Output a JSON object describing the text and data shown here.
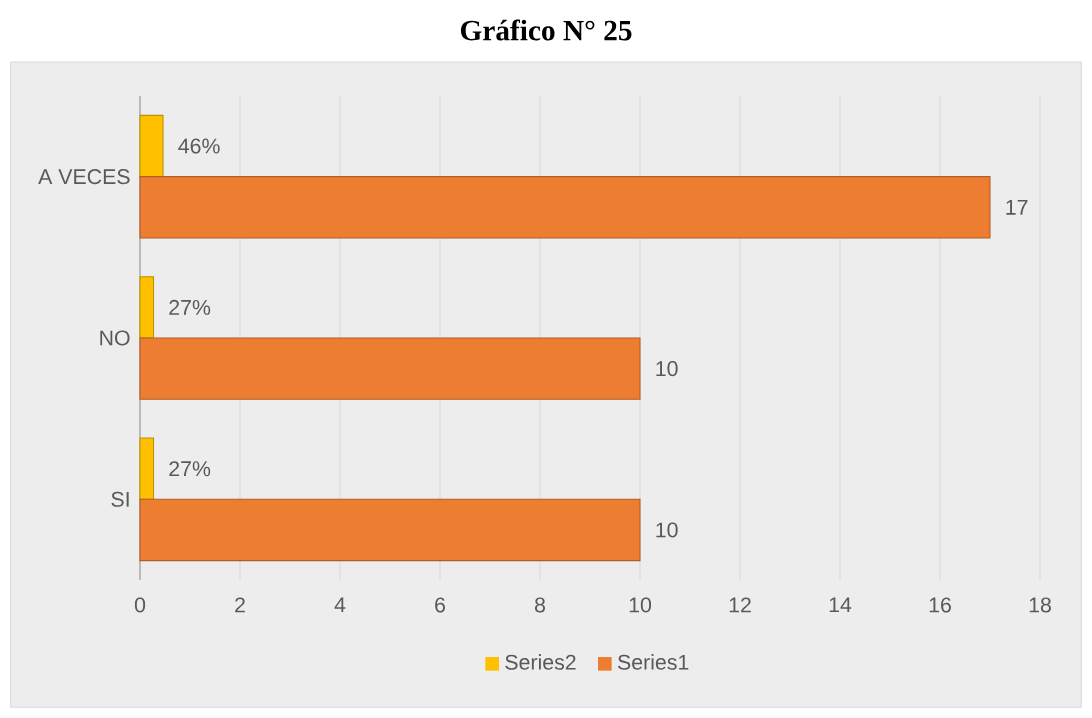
{
  "chart_data": {
    "type": "bar",
    "orientation": "horizontal",
    "title": "Gráfico N° 25",
    "categories": [
      "A VECES",
      "NO",
      "SI"
    ],
    "series": [
      {
        "name": "Series2",
        "color": "#ffc000",
        "values": [
          0.46,
          0.27,
          0.27
        ],
        "value_labels": [
          "46%",
          "27%",
          "27%"
        ]
      },
      {
        "name": "Series1",
        "color": "#ed7d31",
        "values": [
          17,
          10,
          10
        ],
        "value_labels": [
          "17",
          "10",
          "10"
        ]
      }
    ],
    "xlim": [
      0,
      18
    ],
    "xticks": [
      0,
      2,
      4,
      6,
      8,
      10,
      12,
      14,
      16,
      18
    ],
    "grid": "x",
    "legend": "bottom"
  }
}
